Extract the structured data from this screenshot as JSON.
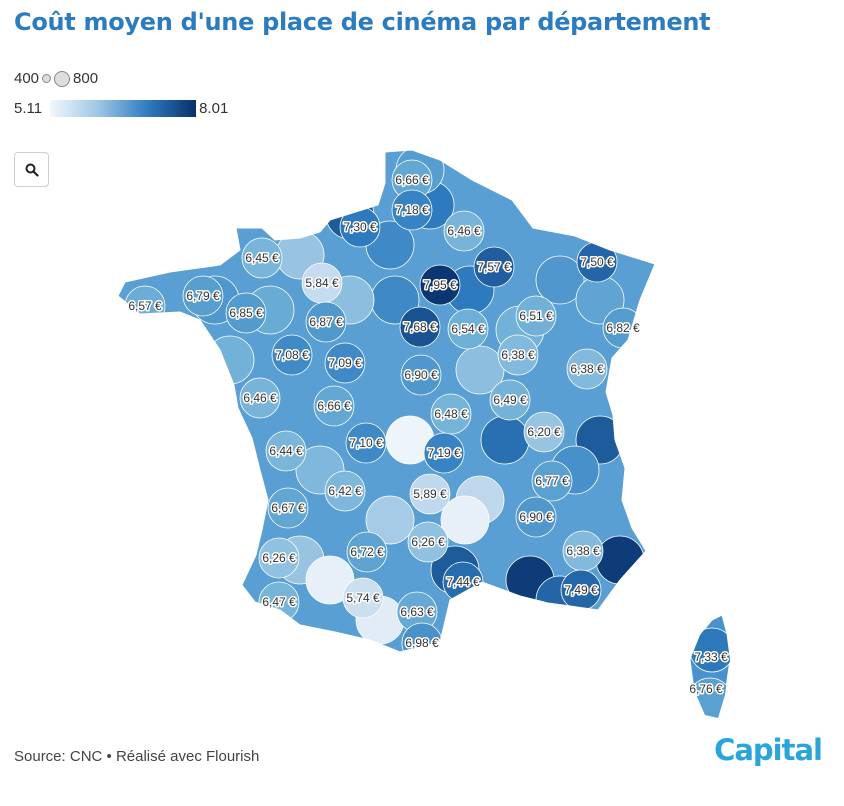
{
  "title": "Coût moyen d'une place de cinéma par département",
  "legend": {
    "size_min": "400",
    "size_max": "800",
    "color_min": "5.11",
    "color_max": "8.01",
    "palette": [
      "#f3f7fc",
      "#c6dbef",
      "#6baed6",
      "#2f7cc0",
      "#08306b"
    ]
  },
  "zoom_button": {
    "icon": "search-icon"
  },
  "labels": [
    {
      "text": "6,66 €",
      "value": 6.66
    },
    {
      "text": "7,18 €",
      "value": 7.18
    },
    {
      "text": "7,30 €",
      "value": 7.3
    },
    {
      "text": "6,46 €",
      "value": 6.46
    },
    {
      "text": "7,57 €",
      "value": 7.57
    },
    {
      "text": "7,50 €",
      "value": 7.5
    },
    {
      "text": "6,45 €",
      "value": 6.45
    },
    {
      "text": "5,84 €",
      "value": 5.84
    },
    {
      "text": "7,95 €",
      "value": 7.95
    },
    {
      "text": "6,57 €",
      "value": 6.57
    },
    {
      "text": "6,79 €",
      "value": 6.79
    },
    {
      "text": "6,85 €",
      "value": 6.85
    },
    {
      "text": "6,87 €",
      "value": 6.87
    },
    {
      "text": "7,68 €",
      "value": 7.68
    },
    {
      "text": "6,54 €",
      "value": 6.54
    },
    {
      "text": "6,51 €",
      "value": 6.51
    },
    {
      "text": "6,82 €",
      "value": 6.82
    },
    {
      "text": "7,08 €",
      "value": 7.08
    },
    {
      "text": "7,09 €",
      "value": 7.09
    },
    {
      "text": "6,38 €",
      "value": 6.38
    },
    {
      "text": "6,90 €",
      "value": 6.9
    },
    {
      "text": "6,38 €",
      "value": 6.38
    },
    {
      "text": "6,46 €",
      "value": 6.46
    },
    {
      "text": "6,66 €",
      "value": 6.66
    },
    {
      "text": "6,48 €",
      "value": 6.48
    },
    {
      "text": "6,49 €",
      "value": 6.49
    },
    {
      "text": "6,20 €",
      "value": 6.2
    },
    {
      "text": "7,10 €",
      "value": 7.1
    },
    {
      "text": "6,44 €",
      "value": 6.44
    },
    {
      "text": "7,19 €",
      "value": 7.19
    },
    {
      "text": "6,77 €",
      "value": 6.77
    },
    {
      "text": "6,42 €",
      "value": 6.42
    },
    {
      "text": "5,89 €",
      "value": 5.89
    },
    {
      "text": "6,67 €",
      "value": 6.67
    },
    {
      "text": "6,90 €",
      "value": 6.9
    },
    {
      "text": "6,26 €",
      "value": 6.26
    },
    {
      "text": "6,72 €",
      "value": 6.72
    },
    {
      "text": "6,38 €",
      "value": 6.38
    },
    {
      "text": "6,26 €",
      "value": 6.26
    },
    {
      "text": "7,44 €",
      "value": 7.44
    },
    {
      "text": "7,49 €",
      "value": 7.49
    },
    {
      "text": "6,47 €",
      "value": 6.47
    },
    {
      "text": "5,74 €",
      "value": 5.74
    },
    {
      "text": "6,63 €",
      "value": 6.63
    },
    {
      "text": "6,98 €",
      "value": 6.98
    },
    {
      "text": "7,33 €",
      "value": 7.33
    },
    {
      "text": "6,76 €",
      "value": 6.76
    }
  ],
  "source": "Source: CNC • Réalisé avec Flourish",
  "brand": "Capital"
}
